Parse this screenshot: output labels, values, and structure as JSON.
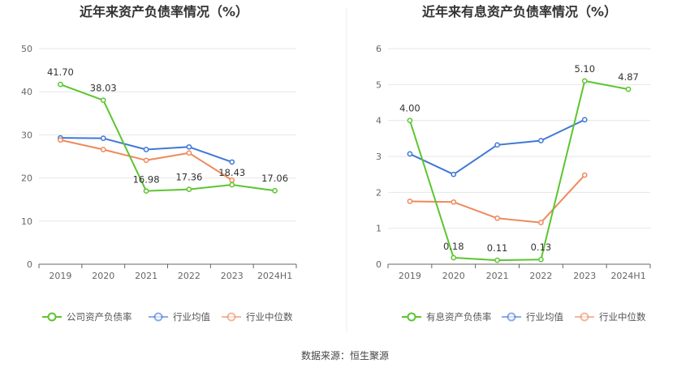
{
  "source_text": "数据来源：恒生聚源",
  "chart_data": [
    {
      "type": "line",
      "title": "近年来资产负债率情况（%）",
      "categories": [
        "2019",
        "2020",
        "2021",
        "2022",
        "2023",
        "2024H1"
      ],
      "ylim": [
        0,
        50
      ],
      "yticks": [
        "0",
        "10",
        "20",
        "30",
        "40",
        "50"
      ],
      "grid": true,
      "legend_position": "bottom",
      "series": [
        {
          "name": "公司资产负债率",
          "color": "#5cc530",
          "values": [
            41.7,
            38.03,
            16.98,
            17.36,
            18.43,
            17.06
          ],
          "labels": [
            "41.70",
            "38.03",
            "16.98",
            "17.36",
            "18.43",
            "17.06"
          ]
        },
        {
          "name": "行业均值",
          "color": "#3f78d6",
          "values": [
            29.3,
            29.2,
            26.6,
            27.2,
            23.7,
            null
          ]
        },
        {
          "name": "行业中位数",
          "color": "#ee8a5c",
          "values": [
            28.8,
            26.6,
            24.1,
            25.8,
            19.5,
            null
          ]
        }
      ]
    },
    {
      "type": "line",
      "title": "近年来有息资产负债率情况（%）",
      "categories": [
        "2019",
        "2020",
        "2021",
        "2022",
        "2023",
        "2024H1"
      ],
      "ylim": [
        0,
        6
      ],
      "yticks": [
        "0",
        "1",
        "2",
        "3",
        "4",
        "5",
        "6"
      ],
      "grid": true,
      "legend_position": "bottom",
      "series": [
        {
          "name": "有息资产负债率",
          "color": "#5cc530",
          "values": [
            4.0,
            0.18,
            0.11,
            0.13,
            5.1,
            4.87
          ],
          "labels": [
            "4.00",
            "0.18",
            "0.11",
            "0.13",
            "5.10",
            "4.87"
          ]
        },
        {
          "name": "行业均值",
          "color": "#3f78d6",
          "values": [
            3.07,
            2.5,
            3.32,
            3.44,
            4.02,
            null
          ]
        },
        {
          "name": "行业中位数",
          "color": "#ee8a5c",
          "values": [
            1.75,
            1.73,
            1.28,
            1.16,
            2.48,
            null
          ]
        }
      ]
    }
  ]
}
